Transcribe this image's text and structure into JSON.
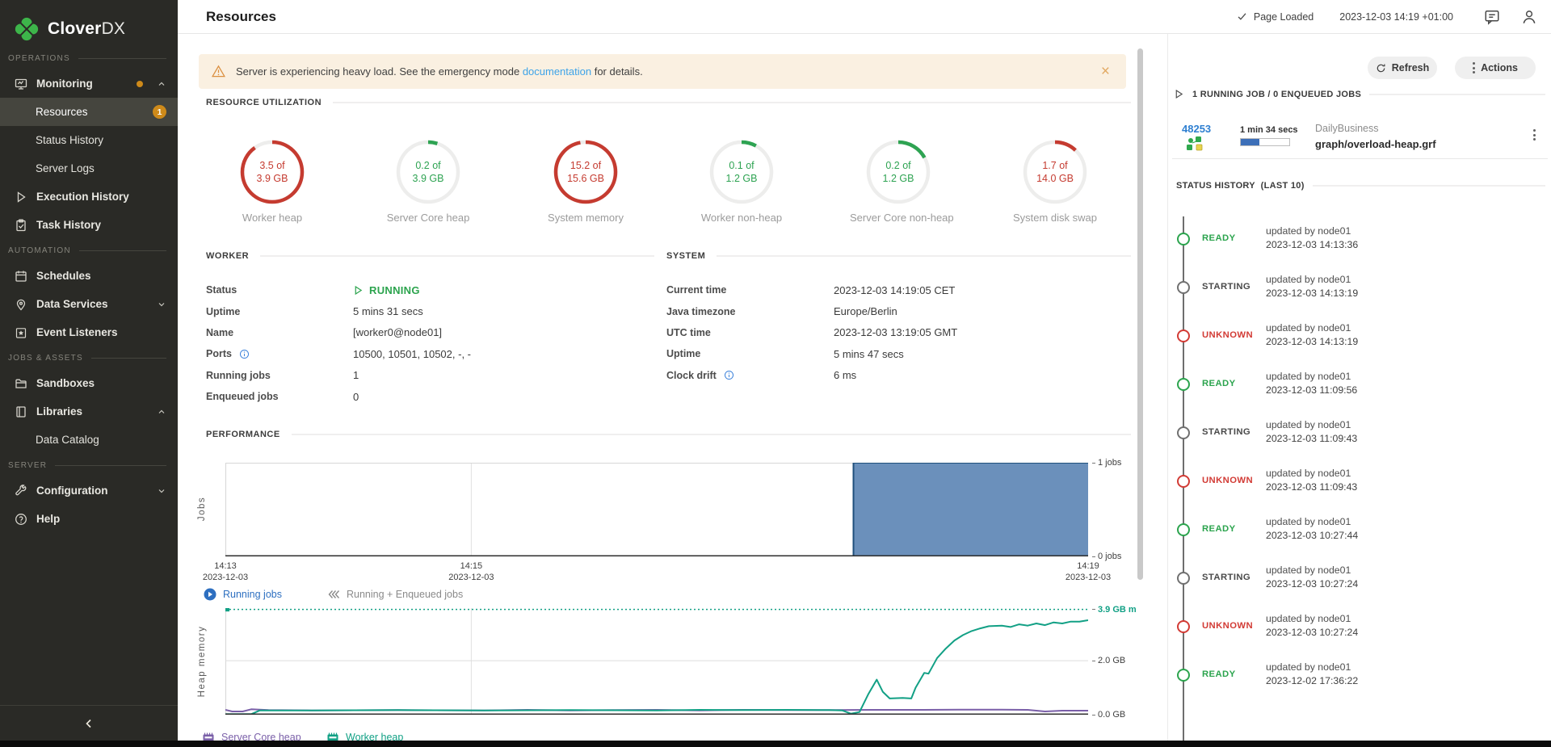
{
  "colors": {
    "brand_green": "#3DB54A",
    "accent_orange": "#CE8A1A",
    "status_green": "#2CA44E",
    "status_red": "#D23B35",
    "status_gray": "#707070",
    "link_blue": "#3DA3E8",
    "chart_blue_fill": "#5B84B4",
    "chart_blue_line": "#20507C",
    "chart_teal": "#12A085",
    "chart_purple": "#7A5FA8"
  },
  "sidebar": {
    "logo_text_main": "Clover",
    "logo_text_suffix": "DX",
    "sections": [
      {
        "label": "OPERATIONS"
      },
      {
        "label": "AUTOMATION"
      },
      {
        "label": "JOBS & ASSETS"
      },
      {
        "label": "SERVER"
      }
    ],
    "items": {
      "monitoring": "Monitoring",
      "resources": "Resources",
      "resources_badge": "1",
      "status_history": "Status History",
      "server_logs": "Server Logs",
      "execution_history": "Execution History",
      "task_history": "Task History",
      "schedules": "Schedules",
      "data_services": "Data Services",
      "event_listeners": "Event Listeners",
      "sandboxes": "Sandboxes",
      "libraries": "Libraries",
      "data_catalog": "Data Catalog",
      "configuration": "Configuration",
      "help": "Help"
    }
  },
  "header": {
    "title": "Resources",
    "page_loaded": "Page Loaded",
    "timestamp": "2023-12-03 14:19 +01:00"
  },
  "banner": {
    "text_before": "Server is experiencing heavy load. See the emergency mode ",
    "link_text": "documentation",
    "text_after": " for details."
  },
  "resource_utilization": {
    "title": "RESOURCE UTILIZATION",
    "gauges": [
      {
        "value_line1": "3.5 of",
        "value_line2": "3.9 GB",
        "label": "Worker heap",
        "percent": 90,
        "color": "#C53B30"
      },
      {
        "value_line1": "0.2 of",
        "value_line2": "3.9 GB",
        "label": "Server Core heap",
        "percent": 5,
        "color": "#2EA352"
      },
      {
        "value_line1": "15.2 of",
        "value_line2": "15.6 GB",
        "label": "System memory",
        "percent": 97,
        "color": "#C53B30"
      },
      {
        "value_line1": "0.1 of",
        "value_line2": "1.2 GB",
        "label": "Worker non-heap",
        "percent": 8,
        "color": "#2EA352"
      },
      {
        "value_line1": "0.2 of",
        "value_line2": "1.2 GB",
        "label": "Server Core non-heap",
        "percent": 17,
        "color": "#2EA352"
      },
      {
        "value_line1": "1.7 of",
        "value_line2": "14.0 GB",
        "label": "System disk swap",
        "percent": 12,
        "color": "#C53B30"
      }
    ]
  },
  "worker": {
    "title": "WORKER",
    "rows": [
      {
        "label": "Status",
        "value": "RUNNING",
        "type": "status"
      },
      {
        "label": "Uptime",
        "value": "5 mins 31 secs"
      },
      {
        "label": "Name",
        "value": "[worker0@node01]"
      },
      {
        "label": "Ports",
        "value": "10500, 10501, 10502, -, -",
        "info": true
      },
      {
        "label": "Running jobs",
        "value": "1"
      },
      {
        "label": "Enqueued jobs",
        "value": "0"
      }
    ]
  },
  "system": {
    "title": "SYSTEM",
    "rows": [
      {
        "label": "Current time",
        "value": "2023-12-03 14:19:05 CET"
      },
      {
        "label": "Java timezone",
        "value": "Europe/Berlin"
      },
      {
        "label": "UTC time",
        "value": "2023-12-03 13:19:05 GMT"
      },
      {
        "label": "Uptime",
        "value": "5 mins 47 secs"
      },
      {
        "label": "Clock drift",
        "value": "6 ms",
        "info": true
      }
    ]
  },
  "performance": {
    "title": "PERFORMANCE"
  },
  "chart_data": [
    {
      "id": "jobs",
      "type": "area",
      "ylabel": "Jobs",
      "ylim": [
        0,
        1
      ],
      "yticks": [
        {
          "value": 1,
          "label": "1 jobs"
        },
        {
          "value": 0,
          "label": "0 jobs"
        }
      ],
      "xticks": [
        {
          "pos": 0,
          "label": "14:13",
          "sublabel": "2023-12-03"
        },
        {
          "pos": 0.285,
          "label": "14:15",
          "sublabel": "2023-12-03"
        },
        {
          "pos": 1,
          "label": "14:19",
          "sublabel": "2023-12-03"
        }
      ],
      "xgrid": [
        0.285
      ],
      "series": [
        {
          "name": "Running jobs",
          "color": "#20507C",
          "fill": "#5B84B4",
          "points": [
            [
              0,
              0
            ],
            [
              0.728,
              0
            ],
            [
              0.728,
              1
            ],
            [
              1,
              1
            ]
          ]
        }
      ],
      "legend": [
        {
          "label": "Running jobs",
          "icon": "play-circle-icon",
          "color": "#2D6FC0",
          "active": true
        },
        {
          "label": "Running + Enqueued jobs",
          "icon": "rewind-icon",
          "color": "#8A8A8A",
          "active": false
        }
      ]
    },
    {
      "id": "heap",
      "type": "line",
      "ylabel": "Heap memory",
      "ylim": [
        0,
        3.95
      ],
      "max_line": {
        "value": 3.9,
        "color": "#12A085"
      },
      "yticks": [
        {
          "value": 3.9,
          "label": "3.9 GB m",
          "max": true
        },
        {
          "value": 2.0,
          "label": "2.0 GB",
          "grid": true
        },
        {
          "value": 0,
          "label": "0.0 GB"
        }
      ],
      "xgrid": [
        0.285
      ],
      "series": [
        {
          "name": "Server Core heap",
          "color": "#7A5FA8",
          "points": [
            [
              0,
              0.18
            ],
            [
              0.008,
              0.12
            ],
            [
              0.02,
              0.12
            ],
            [
              0.03,
              0.2
            ],
            [
              0.05,
              0.17
            ],
            [
              0.1,
              0.16
            ],
            [
              0.2,
              0.17
            ],
            [
              0.3,
              0.16
            ],
            [
              0.35,
              0.18
            ],
            [
              0.4,
              0.16
            ],
            [
              0.45,
              0.17
            ],
            [
              0.5,
              0.18
            ],
            [
              0.55,
              0.16
            ],
            [
              0.6,
              0.18
            ],
            [
              0.65,
              0.17
            ],
            [
              0.7,
              0.17
            ],
            [
              0.75,
              0.18
            ],
            [
              0.8,
              0.18
            ],
            [
              0.85,
              0.19
            ],
            [
              0.9,
              0.19
            ],
            [
              0.93,
              0.18
            ],
            [
              0.95,
              0.12
            ],
            [
              0.97,
              0.15
            ],
            [
              1,
              0.15
            ]
          ]
        },
        {
          "name": "Worker heap",
          "color": "#12A085",
          "points": [
            [
              0,
              0.02
            ],
            [
              0.03,
              0.02
            ],
            [
              0.04,
              0.16
            ],
            [
              0.1,
              0.16
            ],
            [
              0.2,
              0.17
            ],
            [
              0.3,
              0.16
            ],
            [
              0.4,
              0.17
            ],
            [
              0.5,
              0.16
            ],
            [
              0.55,
              0.18
            ],
            [
              0.6,
              0.17
            ],
            [
              0.65,
              0.18
            ],
            [
              0.7,
              0.17
            ],
            [
              0.715,
              0.16
            ],
            [
              0.725,
              0.04
            ],
            [
              0.735,
              0.1
            ],
            [
              0.745,
              0.75
            ],
            [
              0.755,
              1.3
            ],
            [
              0.762,
              0.85
            ],
            [
              0.77,
              0.6
            ],
            [
              0.785,
              0.62
            ],
            [
              0.795,
              0.6
            ],
            [
              0.8,
              1.0
            ],
            [
              0.81,
              1.55
            ],
            [
              0.815,
              1.52
            ],
            [
              0.825,
              2.1
            ],
            [
              0.835,
              2.45
            ],
            [
              0.845,
              2.75
            ],
            [
              0.855,
              2.95
            ],
            [
              0.865,
              3.1
            ],
            [
              0.875,
              3.2
            ],
            [
              0.885,
              3.28
            ],
            [
              0.9,
              3.3
            ],
            [
              0.91,
              3.25
            ],
            [
              0.92,
              3.35
            ],
            [
              0.93,
              3.3
            ],
            [
              0.94,
              3.38
            ],
            [
              0.95,
              3.32
            ],
            [
              0.96,
              3.42
            ],
            [
              0.97,
              3.38
            ],
            [
              0.98,
              3.45
            ],
            [
              0.99,
              3.45
            ],
            [
              1,
              3.5
            ]
          ]
        }
      ],
      "legend": [
        {
          "label": "Server Core heap",
          "icon": "ram-icon",
          "color": "#7A5FA8"
        },
        {
          "label": "Worker heap",
          "icon": "ram-icon",
          "color": "#12A085"
        }
      ]
    }
  ],
  "right_panel": {
    "refresh_label": "Refresh",
    "actions_label": "Actions",
    "running_jobs_header": "1 RUNNING JOB / 0 ENQUEUED JOBS",
    "job": {
      "id": "48253",
      "duration": "1 min 34 secs",
      "progress_percent": 38,
      "project": "DailyBusiness",
      "path": "graph/overload-heap.grf"
    },
    "status_history": {
      "title": "STATUS HISTORY",
      "subtitle": "(LAST 10)",
      "entries": [
        {
          "status": "READY",
          "color": "green",
          "line1": "updated by node01",
          "line2": "2023-12-03 14:13:36"
        },
        {
          "status": "STARTING",
          "color": "gray",
          "line1": "updated by node01",
          "line2": "2023-12-03 14:13:19"
        },
        {
          "status": "UNKNOWN",
          "color": "red",
          "line1": "updated by node01",
          "line2": "2023-12-03 14:13:19"
        },
        {
          "status": "READY",
          "color": "green",
          "line1": "updated by node01",
          "line2": "2023-12-03 11:09:56"
        },
        {
          "status": "STARTING",
          "color": "gray",
          "line1": "updated by node01",
          "line2": "2023-12-03 11:09:43"
        },
        {
          "status": "UNKNOWN",
          "color": "red",
          "line1": "updated by node01",
          "line2": "2023-12-03 11:09:43"
        },
        {
          "status": "READY",
          "color": "green",
          "line1": "updated by node01",
          "line2": "2023-12-03 10:27:44"
        },
        {
          "status": "STARTING",
          "color": "gray",
          "line1": "updated by node01",
          "line2": "2023-12-03 10:27:24"
        },
        {
          "status": "UNKNOWN",
          "color": "red",
          "line1": "updated by node01",
          "line2": "2023-12-03 10:27:24"
        },
        {
          "status": "READY",
          "color": "green",
          "line1": "updated by node01",
          "line2": "2023-12-02 17:36:22"
        }
      ]
    }
  }
}
